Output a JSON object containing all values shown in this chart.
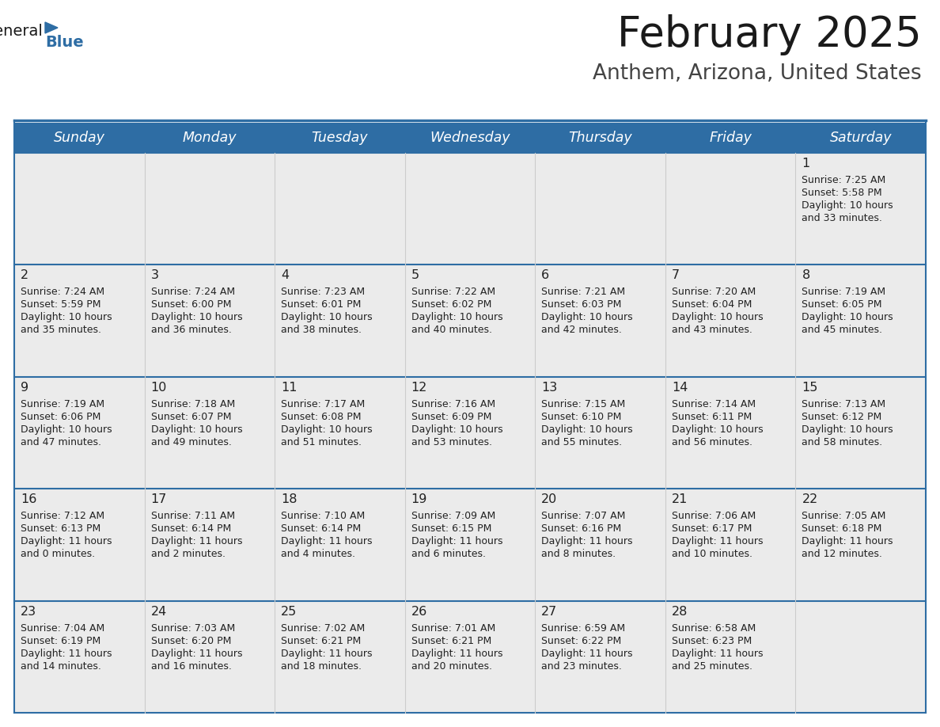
{
  "title": "February 2025",
  "subtitle": "Anthem, Arizona, United States",
  "header_bg": "#2E6DA4",
  "header_text_color": "#FFFFFF",
  "cell_bg": "#EBEBEB",
  "row_separator_color": "#2E6DA4",
  "col_separator_color": "#CCCCCC",
  "text_color": "#222222",
  "day_number_color": "#222222",
  "weekdays": [
    "Sunday",
    "Monday",
    "Tuesday",
    "Wednesday",
    "Thursday",
    "Friday",
    "Saturday"
  ],
  "calendar": [
    [
      null,
      null,
      null,
      null,
      null,
      null,
      1
    ],
    [
      2,
      3,
      4,
      5,
      6,
      7,
      8
    ],
    [
      9,
      10,
      11,
      12,
      13,
      14,
      15
    ],
    [
      16,
      17,
      18,
      19,
      20,
      21,
      22
    ],
    [
      23,
      24,
      25,
      26,
      27,
      28,
      null
    ]
  ],
  "sunrise_data": {
    "1": "7:25 AM",
    "2": "7:24 AM",
    "3": "7:24 AM",
    "4": "7:23 AM",
    "5": "7:22 AM",
    "6": "7:21 AM",
    "7": "7:20 AM",
    "8": "7:19 AM",
    "9": "7:19 AM",
    "10": "7:18 AM",
    "11": "7:17 AM",
    "12": "7:16 AM",
    "13": "7:15 AM",
    "14": "7:14 AM",
    "15": "7:13 AM",
    "16": "7:12 AM",
    "17": "7:11 AM",
    "18": "7:10 AM",
    "19": "7:09 AM",
    "20": "7:07 AM",
    "21": "7:06 AM",
    "22": "7:05 AM",
    "23": "7:04 AM",
    "24": "7:03 AM",
    "25": "7:02 AM",
    "26": "7:01 AM",
    "27": "6:59 AM",
    "28": "6:58 AM"
  },
  "sunset_data": {
    "1": "5:58 PM",
    "2": "5:59 PM",
    "3": "6:00 PM",
    "4": "6:01 PM",
    "5": "6:02 PM",
    "6": "6:03 PM",
    "7": "6:04 PM",
    "8": "6:05 PM",
    "9": "6:06 PM",
    "10": "6:07 PM",
    "11": "6:08 PM",
    "12": "6:09 PM",
    "13": "6:10 PM",
    "14": "6:11 PM",
    "15": "6:12 PM",
    "16": "6:13 PM",
    "17": "6:14 PM",
    "18": "6:14 PM",
    "19": "6:15 PM",
    "20": "6:16 PM",
    "21": "6:17 PM",
    "22": "6:18 PM",
    "23": "6:19 PM",
    "24": "6:20 PM",
    "25": "6:21 PM",
    "26": "6:21 PM",
    "27": "6:22 PM",
    "28": "6:23 PM"
  },
  "daylight_hours": {
    "1": "10 hours",
    "2": "10 hours",
    "3": "10 hours",
    "4": "10 hours",
    "5": "10 hours",
    "6": "10 hours",
    "7": "10 hours",
    "8": "10 hours",
    "9": "10 hours",
    "10": "10 hours",
    "11": "10 hours",
    "12": "10 hours",
    "13": "10 hours",
    "14": "10 hours",
    "15": "10 hours",
    "16": "11 hours",
    "17": "11 hours",
    "18": "11 hours",
    "19": "11 hours",
    "20": "11 hours",
    "21": "11 hours",
    "22": "11 hours",
    "23": "11 hours",
    "24": "11 hours",
    "25": "11 hours",
    "26": "11 hours",
    "27": "11 hours",
    "28": "11 hours"
  },
  "daylight_mins": {
    "1": "and 33 minutes.",
    "2": "and 35 minutes.",
    "3": "and 36 minutes.",
    "4": "and 38 minutes.",
    "5": "and 40 minutes.",
    "6": "and 42 minutes.",
    "7": "and 43 minutes.",
    "8": "and 45 minutes.",
    "9": "and 47 minutes.",
    "10": "and 49 minutes.",
    "11": "and 51 minutes.",
    "12": "and 53 minutes.",
    "13": "and 55 minutes.",
    "14": "and 56 minutes.",
    "15": "and 58 minutes.",
    "16": "and 0 minutes.",
    "17": "and 2 minutes.",
    "18": "and 4 minutes.",
    "19": "and 6 minutes.",
    "20": "and 8 minutes.",
    "21": "and 10 minutes.",
    "22": "and 12 minutes.",
    "23": "and 14 minutes.",
    "24": "and 16 minutes.",
    "25": "and 18 minutes.",
    "26": "and 20 minutes.",
    "27": "and 23 minutes.",
    "28": "and 25 minutes."
  },
  "logo_general_color": "#1a1a1a",
  "logo_blue_color": "#2E6DA4",
  "logo_triangle_color": "#2E6DA4",
  "title_color": "#1a1a1a",
  "subtitle_color": "#444444"
}
